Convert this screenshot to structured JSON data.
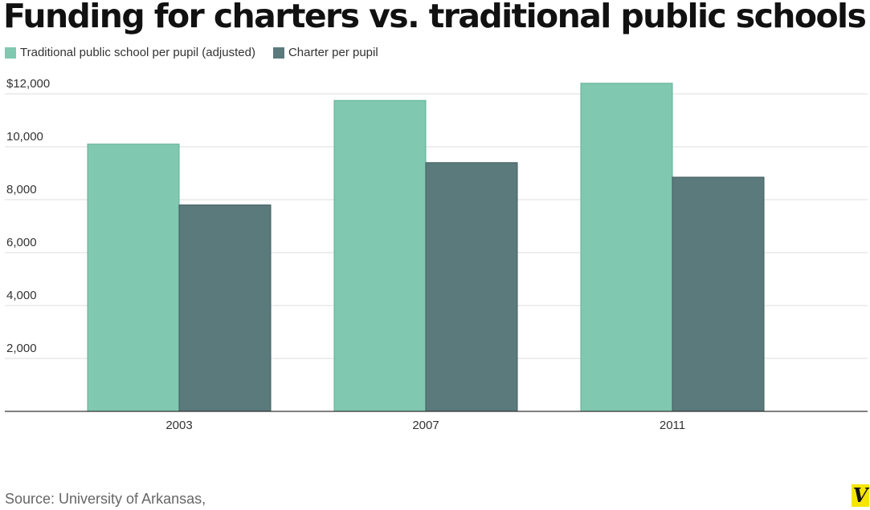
{
  "title": "Funding for charters vs. traditional public schools",
  "source": "Source: University of Arkansas,",
  "logo_text": "V",
  "chart_data": {
    "type": "bar",
    "title": "Funding for charters vs. traditional public schools",
    "categories": [
      "2003",
      "2007",
      "2011"
    ],
    "series": [
      {
        "name": "Traditional public school per pupil (adjusted)",
        "values": [
          10100,
          11750,
          12400
        ],
        "color": "#80c8b0"
      },
      {
        "name": "Charter per pupil",
        "values": [
          7800,
          9400,
          8850
        ],
        "color": "#5a7a7c"
      }
    ],
    "y_ticks": [
      {
        "value": 2000,
        "label": "2,000"
      },
      {
        "value": 4000,
        "label": "4,000"
      },
      {
        "value": 6000,
        "label": "6,000"
      },
      {
        "value": 8000,
        "label": "8,000"
      },
      {
        "value": 10000,
        "label": "10,000"
      },
      {
        "value": 12000,
        "label": "$12,000"
      }
    ],
    "ylim": [
      0,
      12000
    ],
    "grid": true,
    "legend_position": "top-left"
  }
}
